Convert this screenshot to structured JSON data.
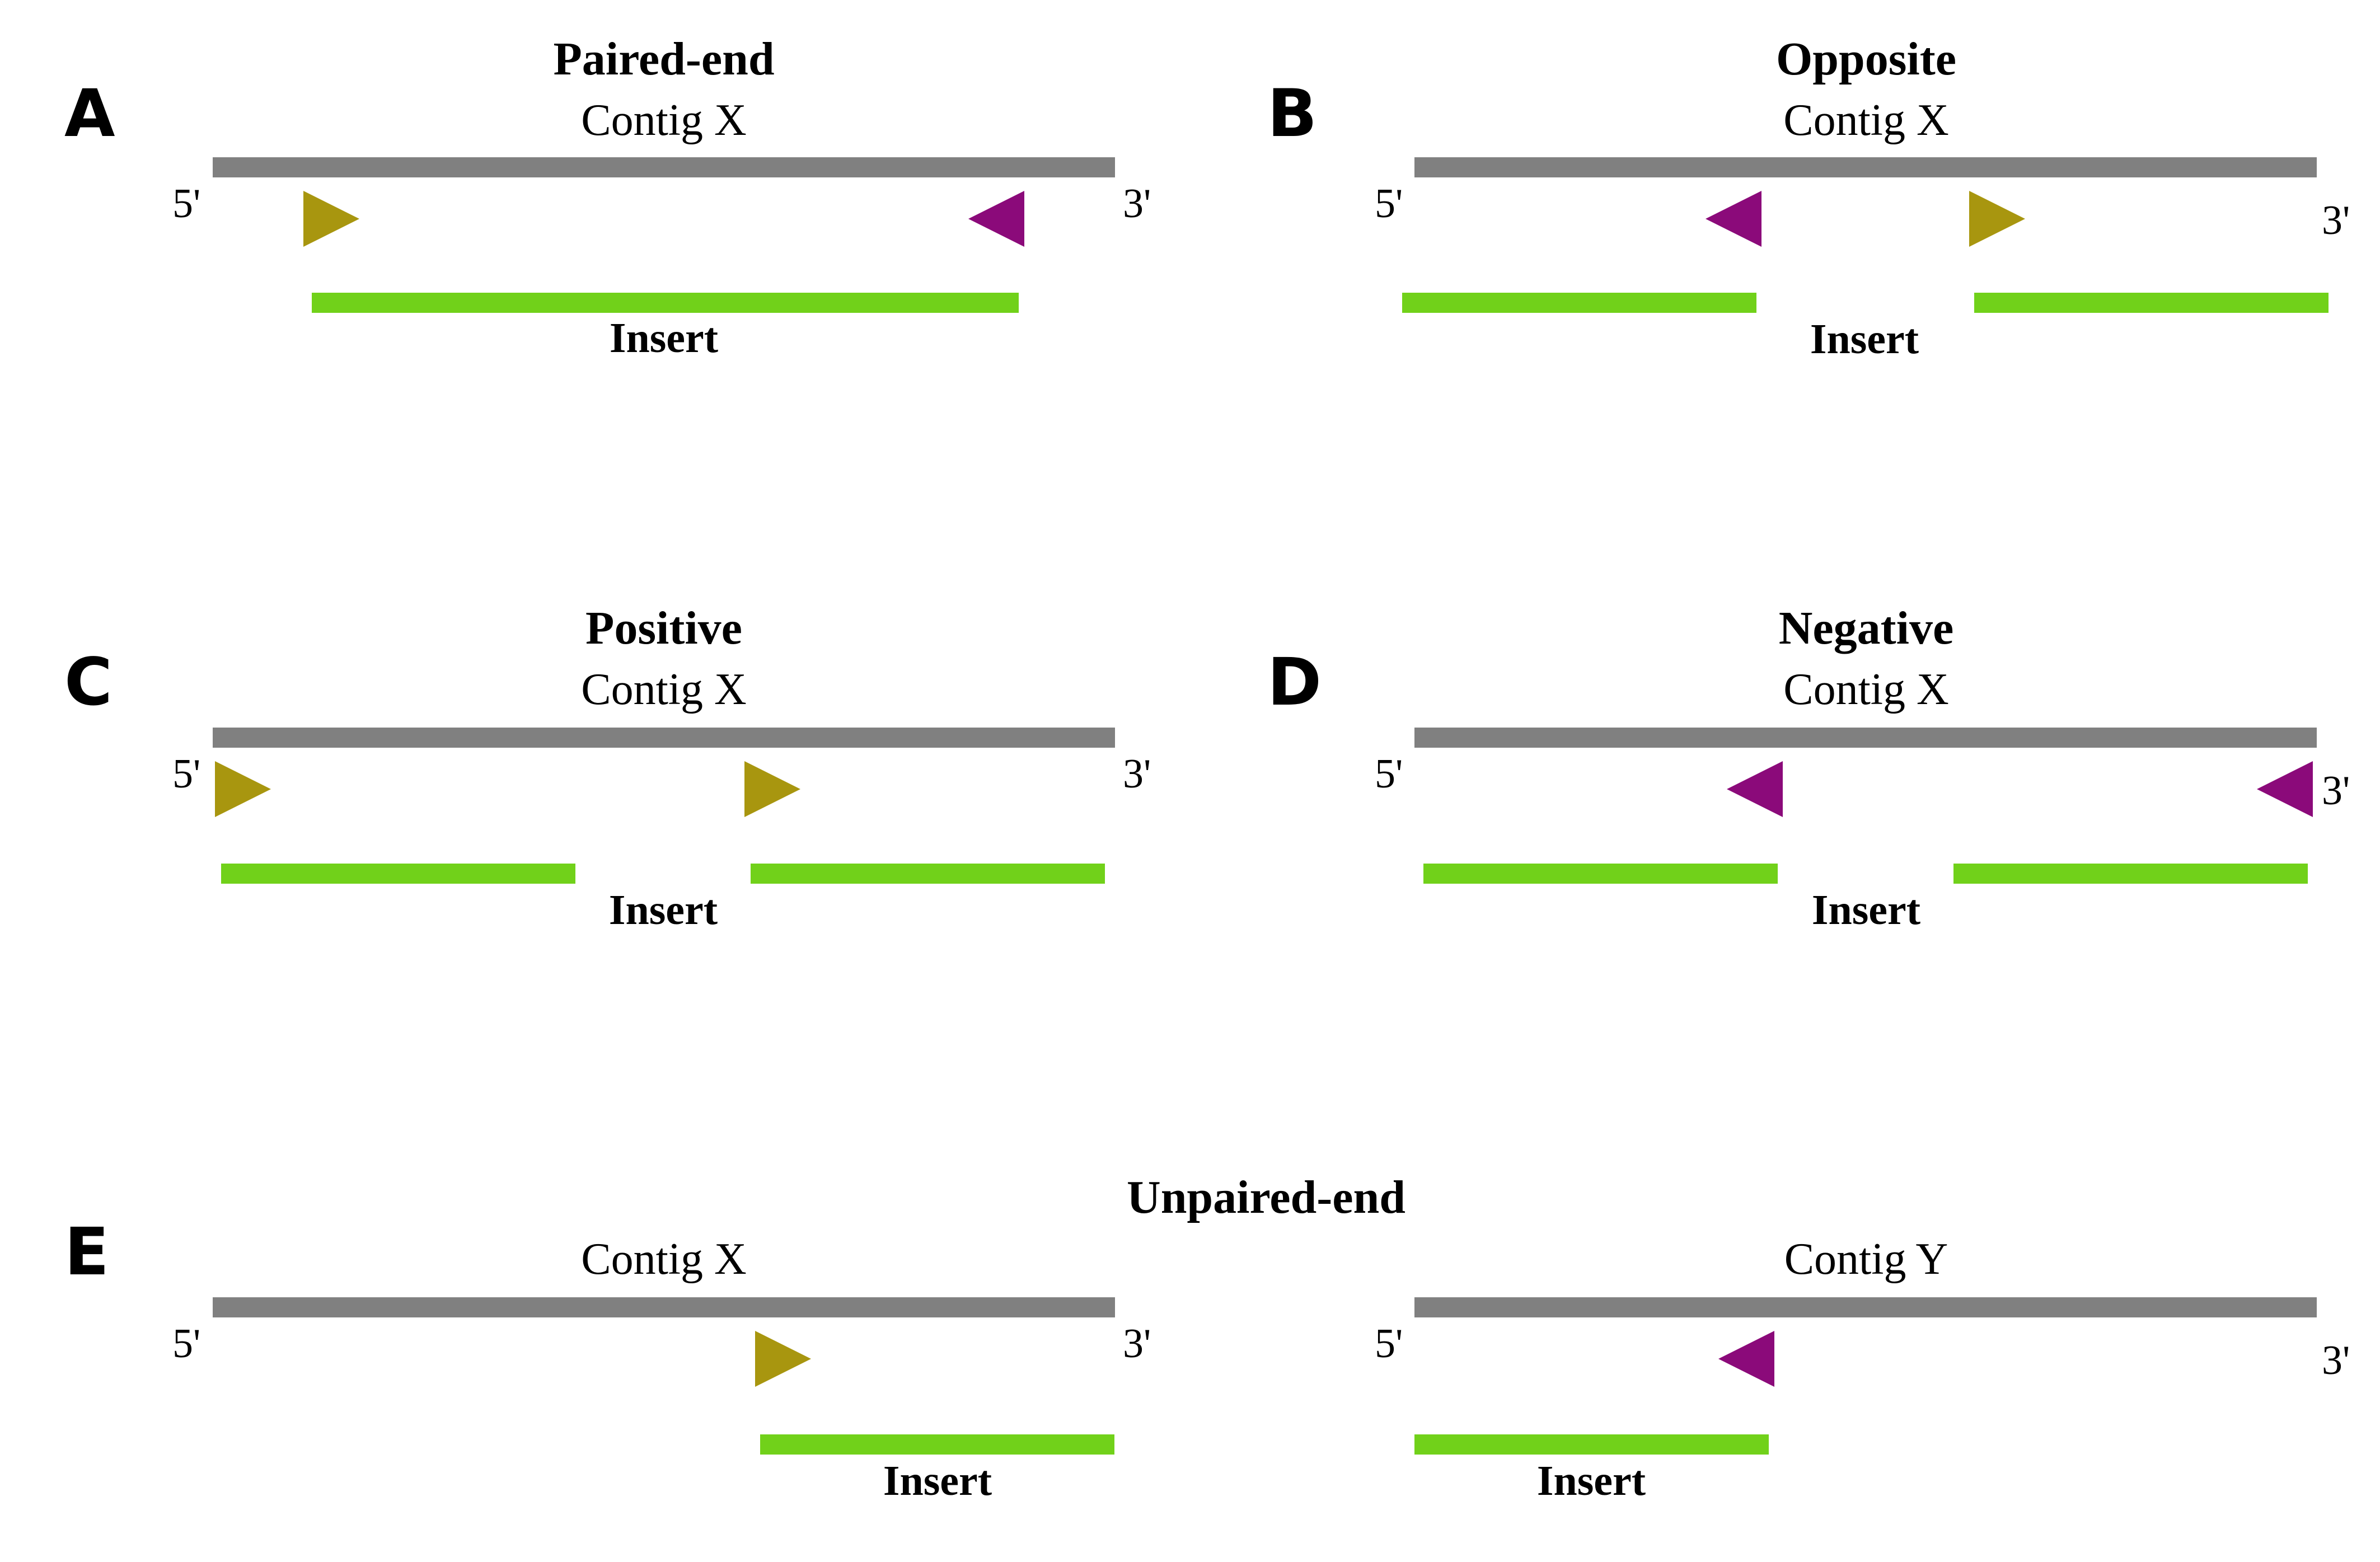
{
  "colors": {
    "contig": "#808080",
    "insert": "#71d11a",
    "forward_read": "#a8960f",
    "reverse_read": "#8b0a7a"
  },
  "panels": [
    {
      "id": "A",
      "letter": "A",
      "title": "Paired-end",
      "contig": "Contig X",
      "five": "5'",
      "three": "3'",
      "insert": "Insert"
    },
    {
      "id": "B",
      "letter": "B",
      "title": "Opposite",
      "contig": "Contig X",
      "five": "5'",
      "three": "3'",
      "insert": "Insert"
    },
    {
      "id": "C",
      "letter": "C",
      "title": "Positive",
      "contig": "Contig X",
      "five": "5'",
      "three": "3'",
      "insert": "Insert"
    },
    {
      "id": "D",
      "letter": "D",
      "title": "Negative",
      "contig": "Contig X",
      "five": "5'",
      "three": "3'",
      "insert": "Insert"
    },
    {
      "id": "E",
      "letter": "E",
      "title": "Unpaired-end",
      "contigs": [
        {
          "name": "Contig X",
          "five": "5'",
          "three": "3'",
          "insert": "Insert"
        },
        {
          "name": "Contig Y",
          "five": "5'",
          "three": "3'",
          "insert": "Insert"
        }
      ]
    }
  ]
}
